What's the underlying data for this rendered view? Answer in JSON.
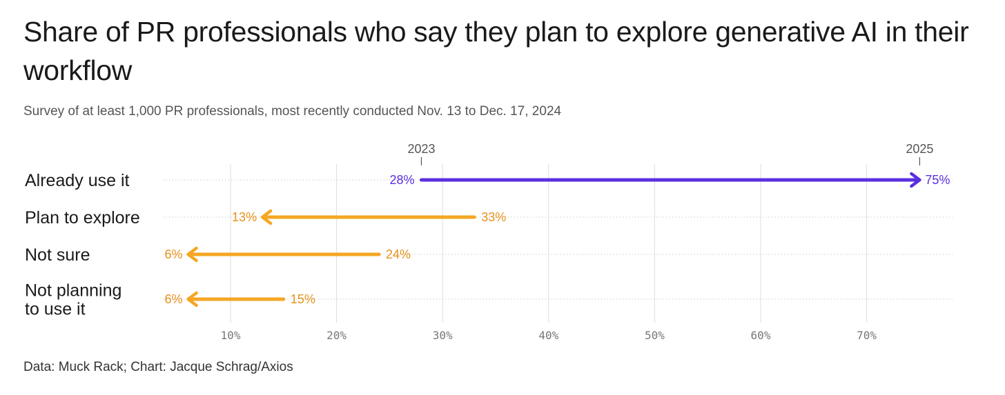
{
  "title": "Share of PR professionals who say they plan to explore generative AI in their workflow",
  "subtitle": "Survey of at least 1,000 PR professionals, most recently conducted Nov. 13 to Dec. 17, 2024",
  "footer": "Data: Muck Rack; Chart: Jacque Schrag/Axios",
  "colors": {
    "increase": "#5b2ee0",
    "decrease": "#f5a623",
    "decrease_text": "#e8901a",
    "grid": "#dddddd"
  },
  "chart_data": {
    "type": "arrow",
    "years": [
      "2023",
      "2025"
    ],
    "x_ticks": [
      10,
      20,
      30,
      40,
      50,
      60,
      70
    ],
    "x_tick_labels": [
      "10%",
      "20%",
      "30%",
      "40%",
      "50%",
      "60%",
      "70%"
    ],
    "rows": [
      {
        "label": [
          "Already use it"
        ],
        "from": 28,
        "to": 75,
        "from_label": "28%",
        "to_label": "75%",
        "direction": "increase"
      },
      {
        "label": [
          "Plan to explore"
        ],
        "from": 33,
        "to": 13,
        "from_label": "33%",
        "to_label": "13%",
        "direction": "decrease"
      },
      {
        "label": [
          "Not sure"
        ],
        "from": 24,
        "to": 6,
        "from_label": "24%",
        "to_label": "6%",
        "direction": "decrease"
      },
      {
        "label": [
          "Not planning",
          "to use it"
        ],
        "from": 15,
        "to": 6,
        "from_label": "15%",
        "to_label": "6%",
        "direction": "decrease"
      }
    ]
  }
}
